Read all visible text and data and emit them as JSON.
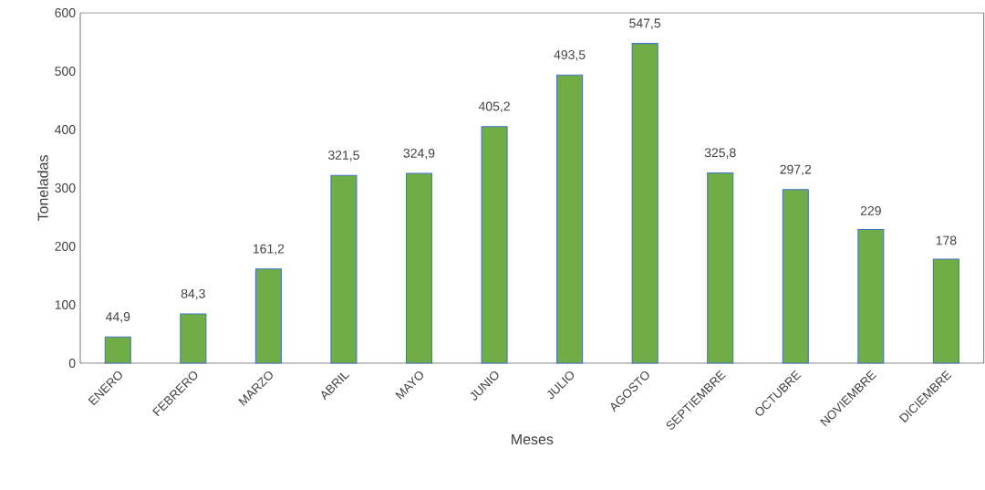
{
  "chart_data": {
    "type": "bar",
    "xlabel": "Meses",
    "ylabel": "Toneladas",
    "categories": [
      "ENERO",
      "FEBRERO",
      "MARZO",
      "ABRIL",
      "MAYO",
      "JUNIO",
      "JULIO",
      "AGOSTO",
      "SEPTIEMBRE",
      "OCTUBRE",
      "NOVIEMBRE",
      "DICIEMBRE"
    ],
    "values": [
      44.9,
      84.3,
      161.2,
      321.5,
      324.9,
      405.2,
      493.5,
      547.5,
      325.8,
      297.2,
      229,
      178
    ],
    "value_labels": [
      "44,9",
      "84,3",
      "161,2",
      "321,5",
      "324,9",
      "405,2",
      "493,5",
      "547,5",
      "325,8",
      "297,2",
      "229",
      "178"
    ],
    "color": "#70ad47",
    "ylim": [
      0,
      600
    ],
    "yticks": [
      0,
      100,
      200,
      300,
      400,
      500,
      600
    ]
  }
}
